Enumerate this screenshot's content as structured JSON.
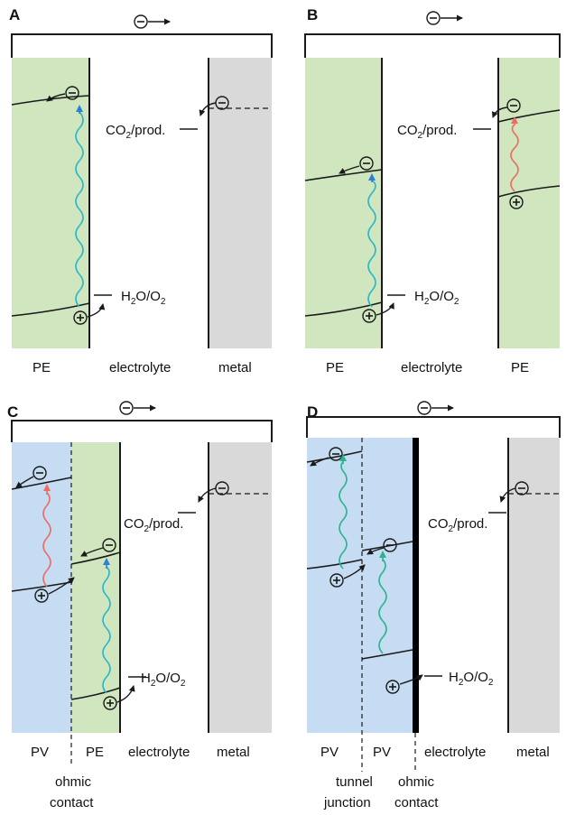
{
  "panels": [
    {
      "id": "A",
      "letter": "A",
      "bottom_labels": [
        "PE",
        "electrolyte",
        "metal"
      ],
      "levels": [
        {
          "species": "CO",
          "sub": "2",
          "rest": "/prod."
        },
        {
          "species": "H",
          "sub": "2",
          "mid": "O/O",
          "sub2": "2"
        }
      ]
    },
    {
      "id": "B",
      "letter": "B",
      "bottom_labels": [
        "PE",
        "electrolyte",
        "PE"
      ],
      "levels": [
        {
          "species": "CO",
          "sub": "2",
          "rest": "/prod."
        },
        {
          "species": "H",
          "sub": "2",
          "mid": "O/O",
          "sub2": "2"
        }
      ]
    },
    {
      "id": "C",
      "letter": "C",
      "bottom_labels": [
        "PV",
        "PE",
        "electrolyte",
        "metal"
      ],
      "contact_labels": [
        [
          "ohmic",
          "contact"
        ]
      ],
      "levels": [
        {
          "species": "CO",
          "sub": "2",
          "rest": "/prod."
        },
        {
          "species": "H",
          "sub": "2",
          "mid": "O/O",
          "sub2": "2"
        }
      ]
    },
    {
      "id": "D",
      "letter": "D",
      "bottom_labels": [
        "PV",
        "PV",
        "electrolyte",
        "metal"
      ],
      "contact_labels": [
        [
          "tunnel",
          "junction"
        ],
        [
          "ohmic",
          "contact"
        ]
      ],
      "levels": [
        {
          "species": "CO",
          "sub": "2",
          "rest": "/prod."
        },
        {
          "species": "H",
          "sub": "2",
          "mid": "O/O",
          "sub2": "2"
        }
      ]
    }
  ],
  "colors": {
    "pe_green": "#cfe6bf",
    "pv_blue": "#c6dcf2",
    "metal_gray": "#d9d9da",
    "wave_cyan": "#2bb5c8",
    "wave_red": "#ee6b62",
    "wave_green": "#2bb38f",
    "arrow_blue": "#2f7fd1",
    "line": "#1a1a1a"
  },
  "icons": {
    "electron": "minus-in-circle",
    "hole": "plus-in-circle",
    "electron_flow": "arrow-right"
  }
}
